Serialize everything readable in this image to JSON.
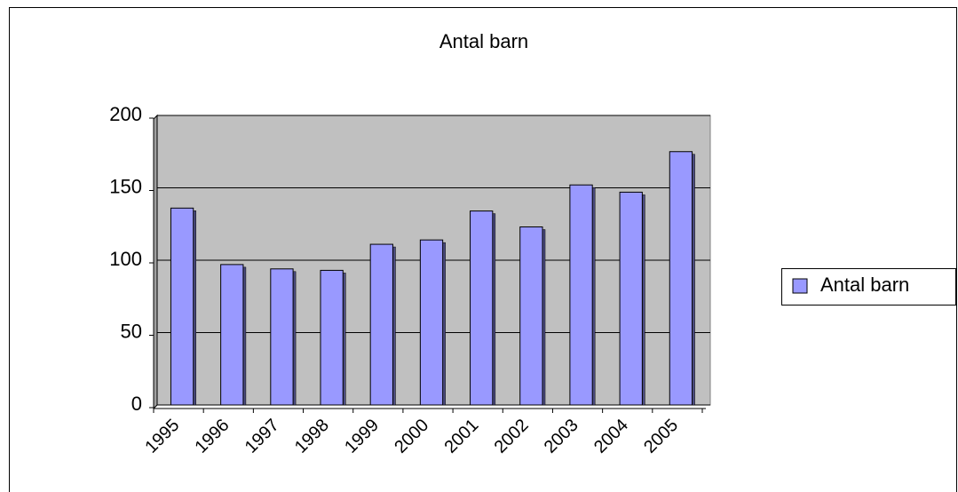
{
  "chart_data": {
    "type": "bar",
    "title": "Antal barn",
    "categories": [
      "1995",
      "1996",
      "1997",
      "1998",
      "1999",
      "2000",
      "2001",
      "2002",
      "2003",
      "2004",
      "2005"
    ],
    "series": [
      {
        "name": "Antal barn",
        "color": "#9999ff",
        "values": [
          136,
          97,
          94,
          93,
          111,
          114,
          134,
          123,
          152,
          147,
          175
        ]
      }
    ],
    "ylim": [
      0,
      200
    ],
    "yticks": [
      0,
      50,
      100,
      150,
      200
    ],
    "grid": true,
    "legend": "right"
  }
}
